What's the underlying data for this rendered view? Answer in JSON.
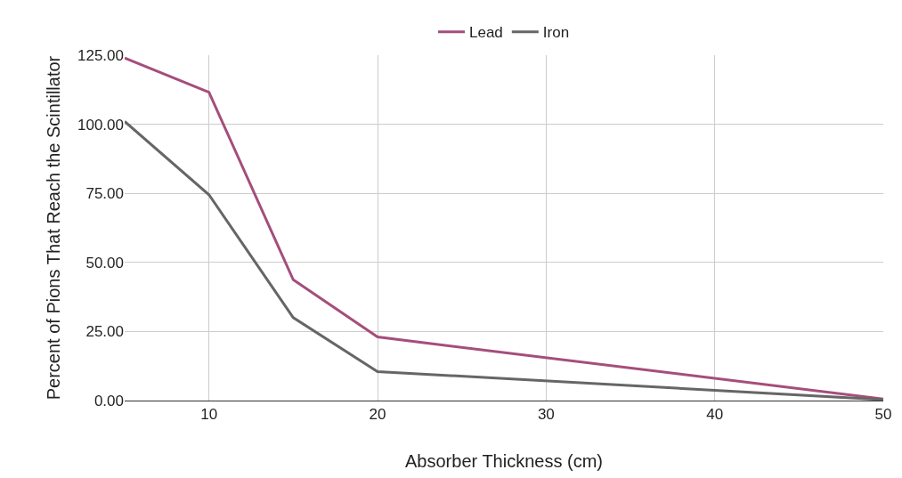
{
  "chart_data": {
    "type": "line",
    "xlabel": "Absorber Thickness (cm)",
    "ylabel": "Percent of Pions That Reach the Scintillator",
    "x": [
      5,
      10,
      15,
      20,
      50
    ],
    "series": [
      {
        "name": "Lead",
        "color": "#a44e7c",
        "values": [
          124,
          111.6,
          43.7,
          23,
          0.6
        ]
      },
      {
        "name": "Iron",
        "color": "#666666",
        "values": [
          101,
          74.5,
          30,
          10.5,
          0.3
        ]
      }
    ],
    "xlim": [
      5,
      50
    ],
    "xticks": [
      10,
      20,
      30,
      40,
      50
    ],
    "ylim": [
      0,
      125
    ],
    "yticks": [
      {
        "value": 0,
        "label": "0.00"
      },
      {
        "value": 25,
        "label": "25.00"
      },
      {
        "value": 50,
        "label": "50.00"
      },
      {
        "value": 75,
        "label": "75.00"
      },
      {
        "value": 100,
        "label": "100.00"
      },
      {
        "value": 125,
        "label": "125.00"
      }
    ],
    "grid": true,
    "legend": "top",
    "marker": "none",
    "line_style": "solid"
  }
}
